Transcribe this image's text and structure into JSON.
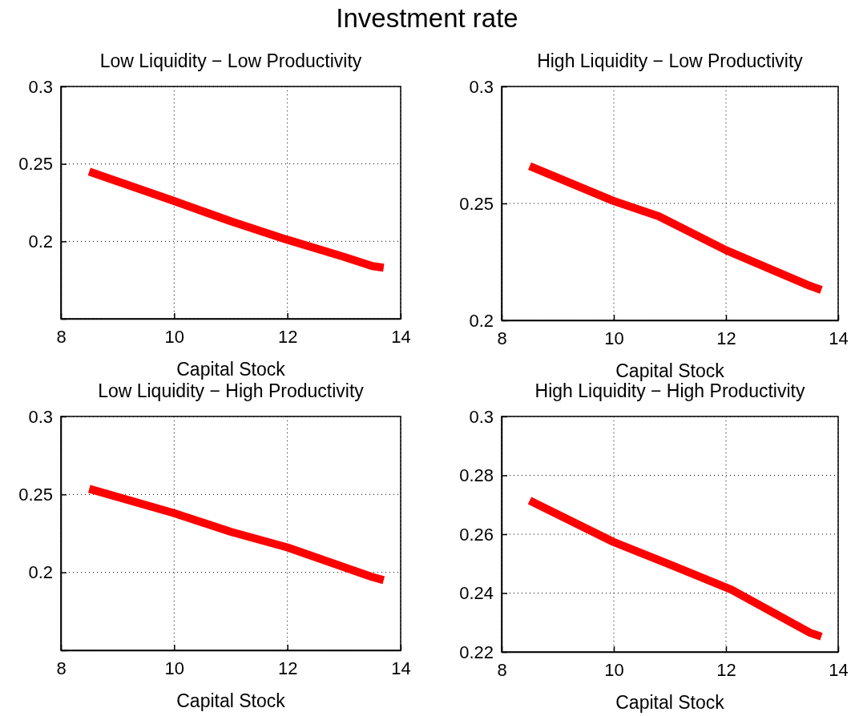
{
  "chart_data": [
    {
      "type": "line",
      "title": "Low Liquidity − Low Productivity",
      "xlabel": "Capital Stock",
      "annotations": [
        "Investment rate"
      ],
      "xlim": [
        8,
        14
      ],
      "xticks": [
        8,
        10,
        12,
        14
      ],
      "ylim": [
        0.15,
        0.3
      ],
      "yticks": [
        {
          "value": 0.15,
          "label": null
        },
        0.2,
        0.25,
        0.3
      ],
      "grid": true,
      "line_style": "solid",
      "marker": "none",
      "x": [
        8.5,
        10,
        11,
        12,
        13,
        13.5,
        13.7
      ],
      "series": [
        {
          "color": "#ff0000",
          "values": [
            0.245,
            0.226,
            0.213,
            0.201,
            0.19,
            0.184,
            0.183
          ]
        }
      ]
    },
    {
      "type": "line",
      "title": "High Liquidity − Low Productivity",
      "xlabel": "Capital Stock",
      "xlim": [
        8,
        14
      ],
      "xticks": [
        8,
        10,
        12,
        14
      ],
      "ylim": [
        0.2,
        0.3
      ],
      "yticks": [
        0.2,
        0.25,
        0.3
      ],
      "grid": true,
      "line_style": "solid",
      "marker": "none",
      "x": [
        8.5,
        10,
        10.8,
        12,
        13.5,
        13.7
      ],
      "series": [
        {
          "color": "#ff0000",
          "values": [
            0.266,
            0.251,
            0.2445,
            0.23,
            0.2147,
            0.213
          ]
        }
      ]
    },
    {
      "type": "line",
      "title": "Low Liquidity − High Productivity",
      "xlabel": "Capital Stock",
      "xlim": [
        8,
        14
      ],
      "xticks": [
        8,
        10,
        12,
        14
      ],
      "ylim": [
        0.15,
        0.3
      ],
      "yticks": [
        {
          "value": 0.15,
          "label": null
        },
        0.2,
        0.25,
        0.3
      ],
      "grid": true,
      "line_style": "solid",
      "marker": "none",
      "x": [
        8.5,
        10,
        11,
        12,
        13.5,
        13.7
      ],
      "series": [
        {
          "color": "#ff0000",
          "values": [
            0.2536,
            0.238,
            0.226,
            0.216,
            0.197,
            0.195
          ]
        }
      ]
    },
    {
      "type": "line",
      "title": "High Liquidity − High Productivity",
      "xlabel": "Capital Stock",
      "xlim": [
        8,
        14
      ],
      "xticks": [
        8,
        10,
        12,
        14
      ],
      "ylim": [
        0.22,
        0.3
      ],
      "yticks": [
        0.22,
        0.24,
        0.26,
        0.28,
        0.3
      ],
      "grid": true,
      "line_style": "solid",
      "marker": "none",
      "x": [
        8.5,
        10,
        11,
        12.1,
        13.5,
        13.7
      ],
      "series": [
        {
          "color": "#ff0000",
          "values": [
            0.2714,
            0.2573,
            0.2497,
            0.2411,
            0.2265,
            0.2252
          ]
        }
      ]
    }
  ]
}
